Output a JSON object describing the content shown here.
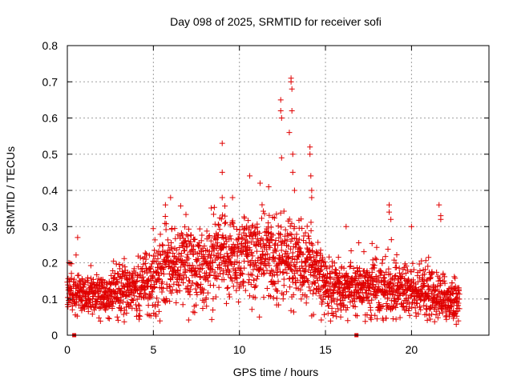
{
  "chart_data": {
    "type": "scatter",
    "title": "Day 098 of 2025, SRMTID for receiver sofi",
    "xlabel": "GPS time / hours",
    "ylabel": "SRMTID / TECUs",
    "xlim": [
      0,
      24.5
    ],
    "ylim": [
      0,
      0.8
    ],
    "grid": true,
    "marker": "+",
    "color": "#e00000",
    "xticks": [
      0,
      5,
      10,
      15,
      20
    ],
    "xtick_labels": [
      "0",
      "5",
      "10",
      "15",
      "20"
    ],
    "yticks": [
      0,
      0.1,
      0.2,
      0.3,
      0.4,
      0.5,
      0.6,
      0.7,
      0.8
    ],
    "ytick_labels": [
      "0",
      "0.1",
      "0.2",
      "0.3",
      "0.4",
      "0.5",
      "0.6",
      "0.7",
      "0.8"
    ],
    "baseline_markers": [
      0.4,
      16.8
    ],
    "trend": {
      "x": [
        0,
        1,
        2,
        3,
        4,
        5,
        5.5,
        6,
        7,
        8,
        9,
        10,
        11,
        12,
        13,
        14,
        14.5,
        15,
        16,
        17,
        18,
        19,
        20,
        21,
        22,
        22.8
      ],
      "median": [
        0.12,
        0.11,
        0.11,
        0.12,
        0.13,
        0.15,
        0.18,
        0.2,
        0.2,
        0.19,
        0.21,
        0.22,
        0.22,
        0.22,
        0.21,
        0.19,
        0.16,
        0.14,
        0.13,
        0.13,
        0.14,
        0.13,
        0.12,
        0.11,
        0.1,
        0.1
      ],
      "spread": [
        0.04,
        0.04,
        0.04,
        0.05,
        0.05,
        0.06,
        0.07,
        0.07,
        0.07,
        0.07,
        0.08,
        0.08,
        0.08,
        0.08,
        0.08,
        0.07,
        0.06,
        0.05,
        0.05,
        0.05,
        0.06,
        0.05,
        0.05,
        0.05,
        0.04,
        0.04
      ]
    },
    "notable_points": [
      {
        "x": 0.6,
        "y": 0.27
      },
      {
        "x": 5.7,
        "y": 0.36
      },
      {
        "x": 6.0,
        "y": 0.38
      },
      {
        "x": 9.0,
        "y": 0.53
      },
      {
        "x": 9.0,
        "y": 0.45
      },
      {
        "x": 9.0,
        "y": 0.38
      },
      {
        "x": 9.6,
        "y": 0.38
      },
      {
        "x": 10.6,
        "y": 0.44
      },
      {
        "x": 11.2,
        "y": 0.42
      },
      {
        "x": 11.7,
        "y": 0.41
      },
      {
        "x": 12.4,
        "y": 0.65
      },
      {
        "x": 12.4,
        "y": 0.62
      },
      {
        "x": 12.45,
        "y": 0.6
      },
      {
        "x": 12.45,
        "y": 0.49
      },
      {
        "x": 12.9,
        "y": 0.56
      },
      {
        "x": 13.0,
        "y": 0.71
      },
      {
        "x": 13.0,
        "y": 0.7
      },
      {
        "x": 13.05,
        "y": 0.68
      },
      {
        "x": 13.05,
        "y": 0.62
      },
      {
        "x": 13.1,
        "y": 0.5
      },
      {
        "x": 13.1,
        "y": 0.45
      },
      {
        "x": 13.2,
        "y": 0.4
      },
      {
        "x": 14.1,
        "y": 0.52
      },
      {
        "x": 14.1,
        "y": 0.5
      },
      {
        "x": 14.15,
        "y": 0.44
      },
      {
        "x": 14.2,
        "y": 0.4
      },
      {
        "x": 14.2,
        "y": 0.38
      },
      {
        "x": 16.2,
        "y": 0.3
      },
      {
        "x": 18.7,
        "y": 0.36
      },
      {
        "x": 18.7,
        "y": 0.34
      },
      {
        "x": 18.8,
        "y": 0.32
      },
      {
        "x": 20.0,
        "y": 0.3
      },
      {
        "x": 21.6,
        "y": 0.36
      },
      {
        "x": 21.7,
        "y": 0.33
      },
      {
        "x": 21.7,
        "y": 0.32
      },
      {
        "x": 22.6,
        "y": 0.03
      }
    ]
  }
}
